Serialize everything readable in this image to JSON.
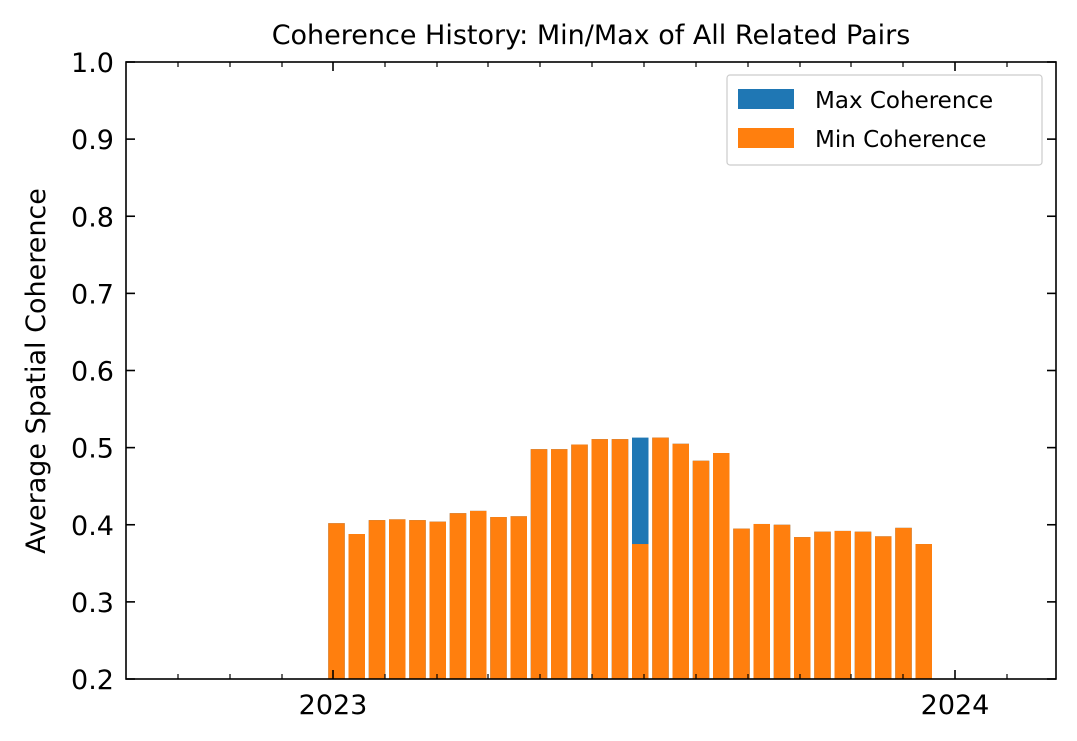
{
  "chart_data": {
    "type": "bar",
    "title": "Coherence History: Min/Max of All Related Pairs",
    "xlabel": "",
    "ylabel": "Average Spatial Coherence",
    "ylim": [
      0.2,
      1.0
    ],
    "yticks": [
      "0.2",
      "0.3",
      "0.4",
      "0.5",
      "0.6",
      "0.7",
      "0.8",
      "0.9",
      "1.0"
    ],
    "xtick_labels": [
      "2023",
      "2024"
    ],
    "grid": false,
    "legend_position": "top-right",
    "series": [
      {
        "name": "Max Coherence",
        "color": "#1f77b4",
        "values": [
          0.402,
          0.388,
          0.406,
          0.407,
          0.406,
          0.404,
          0.415,
          0.418,
          0.41,
          0.411,
          0.498,
          0.498,
          0.504,
          0.511,
          0.511,
          0.513,
          0.513,
          0.505,
          0.483,
          0.493,
          0.395,
          0.401,
          0.4,
          0.384,
          0.391,
          0.392,
          0.391,
          0.385,
          0.396,
          0.375
        ]
      },
      {
        "name": "Min Coherence",
        "color": "#ff7f0e",
        "values": [
          0.402,
          0.388,
          0.406,
          0.407,
          0.406,
          0.404,
          0.415,
          0.418,
          0.41,
          0.411,
          0.498,
          0.498,
          0.504,
          0.511,
          0.511,
          0.375,
          0.513,
          0.505,
          0.483,
          0.493,
          0.395,
          0.401,
          0.4,
          0.384,
          0.391,
          0.392,
          0.391,
          0.385,
          0.396,
          0.375
        ]
      }
    ]
  }
}
